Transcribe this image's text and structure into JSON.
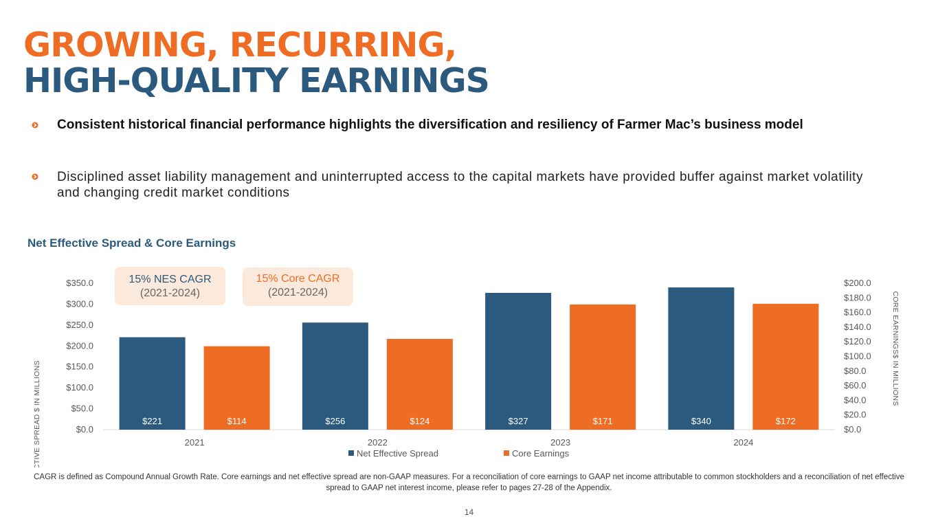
{
  "title": {
    "line1": "GROWING, RECURRING,",
    "line2": "HIGH-QUALITY EARNINGS"
  },
  "bullets": [
    "Consistent historical financial performance highlights the diversification and resiliency of Farmer Mac’s business model",
    "Disciplined asset liability management and uninterrupted access to the capital markets have provided buffer against market volatility and changing credit market conditions"
  ],
  "chart_title": "Net Effective Spread & Core Earnings",
  "callouts": {
    "nes": {
      "line1": "15% NES CAGR",
      "line2": "(2021-2024)"
    },
    "core": {
      "line1": "15% Core CAGR",
      "line2": "(2021-2024)"
    }
  },
  "colors": {
    "navy": "#2b5a7e",
    "orange": "#ef6c25"
  },
  "chart_data": {
    "type": "bar",
    "categories": [
      "2021",
      "2022",
      "2023",
      "2024"
    ],
    "series": [
      {
        "name": "Net Effective Spread",
        "axis": "left",
        "values": [
          221,
          256,
          327,
          340
        ],
        "labels": [
          "$221",
          "$256",
          "$327",
          "$340"
        ]
      },
      {
        "name": "Core Earnings",
        "axis": "right",
        "values": [
          114,
          124,
          171,
          172
        ],
        "labels": [
          "$114",
          "$124",
          "$171",
          "$172"
        ]
      }
    ],
    "ylabel_left": "NET EFFECTIVE SPREAD $ IN MILLIONS",
    "ylabel_right": "CORE EARNINGS$ IN MILLIONS",
    "ylim_left": [
      0,
      350
    ],
    "ylim_right": [
      0,
      200
    ],
    "yticks_left": [
      "$0.0",
      "$50.0",
      "$100.0",
      "$150.0",
      "$200.0",
      "$250.0",
      "$300.0",
      "$350.0"
    ],
    "yticks_right": [
      "$0.0",
      "$20.0",
      "$40.0",
      "$60.0",
      "$80.0",
      "$100.0",
      "$120.0",
      "$140.0",
      "$160.0",
      "$180.0",
      "$200.0"
    ],
    "legend": "bottom-center"
  },
  "footnote": "CAGR is defined as Compound Annual Growth Rate. Core earnings and net effective spread are non-GAAP measures. For a reconciliation of core earnings to GAAP net income attributable to common stockholders and a reconciliation of net effective spread to GAAP net interest income, please refer to pages 27-28 of the Appendix.",
  "page_number": "14"
}
